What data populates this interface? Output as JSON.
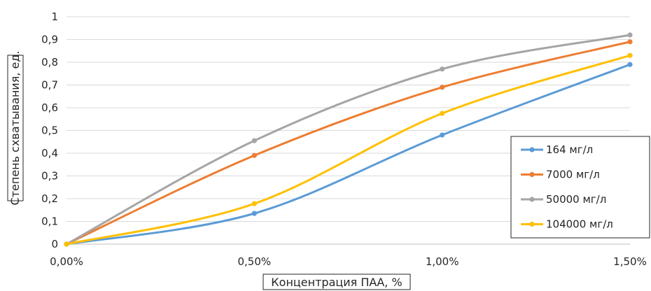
{
  "chart_data": {
    "type": "line",
    "title": "",
    "xlabel": "Концентрация ПАА, %",
    "ylabel": "Степень схватывания, ед.",
    "categories": [
      "0,00%",
      "0,50%",
      "1,00%",
      "1,50%"
    ],
    "x": [
      0,
      0.5,
      1.0,
      1.5
    ],
    "xlim": [
      0,
      1.5
    ],
    "ylim": [
      0,
      1
    ],
    "yticks": [
      "0",
      "0,1",
      "0,2",
      "0,3",
      "0,4",
      "0,5",
      "0,6",
      "0,7",
      "0,8",
      "0,9",
      "1"
    ],
    "ytick_values": [
      0,
      0.1,
      0.2,
      0.3,
      0.4,
      0.5,
      0.6,
      0.7,
      0.8,
      0.9,
      1.0
    ],
    "grid": true,
    "smooth": true,
    "legend_position": "right",
    "series": [
      {
        "name": "164 мг/л",
        "color": "#5B9BD5",
        "values": [
          0,
          0.135,
          0.48,
          0.79
        ]
      },
      {
        "name": "7000 мг/л",
        "color": "#ED7D31",
        "values": [
          0,
          0.39,
          0.69,
          0.89
        ]
      },
      {
        "name": "50000 мг/л",
        "color": "#A5A5A5",
        "values": [
          0,
          0.455,
          0.77,
          0.92
        ]
      },
      {
        "name": "104000 мг/л",
        "color": "#FFC000",
        "values": [
          0,
          0.178,
          0.575,
          0.83
        ]
      }
    ]
  }
}
